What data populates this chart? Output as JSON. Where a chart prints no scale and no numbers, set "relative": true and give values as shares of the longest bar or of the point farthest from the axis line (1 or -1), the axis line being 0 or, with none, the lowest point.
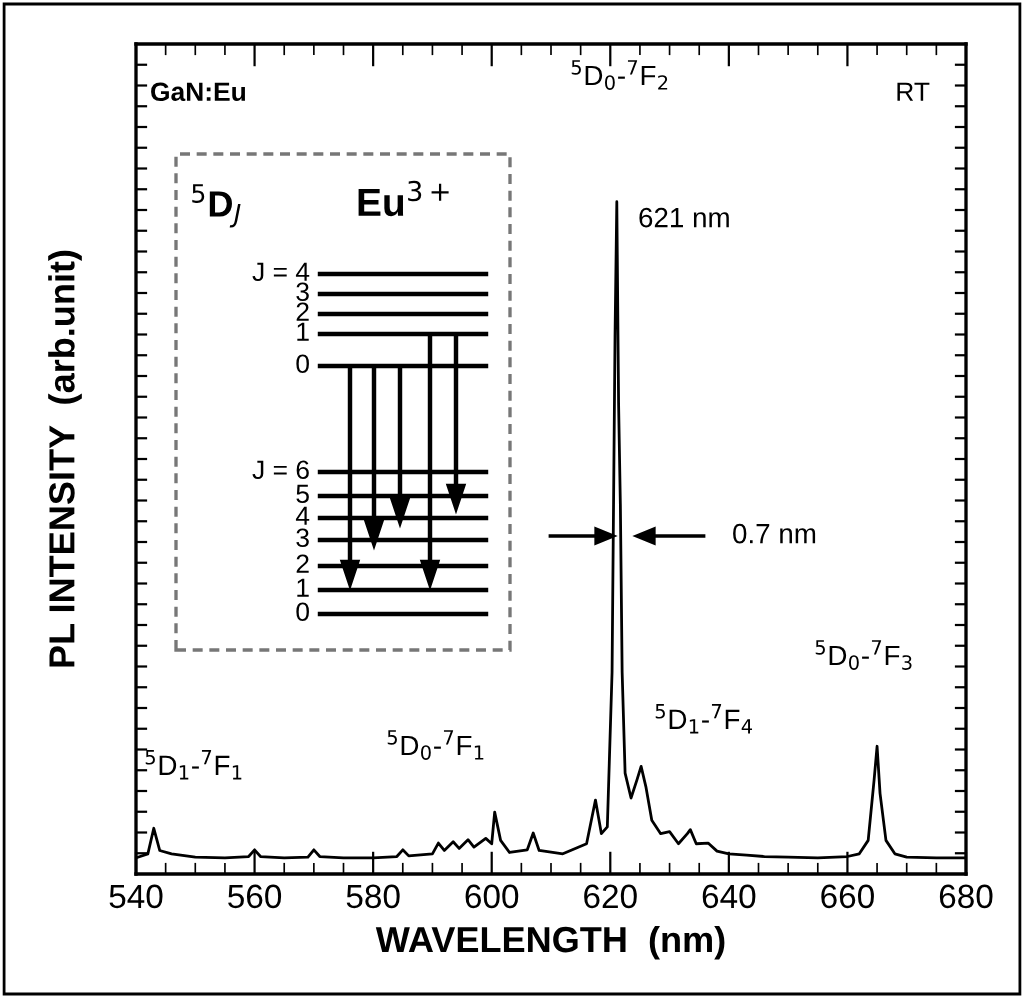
{
  "chart_data": {
    "type": "line",
    "relative": true,
    "xlabel": "WAVELENGTH  (nm)",
    "ylabel": "PL INTENSITY  (arb.unit)",
    "x": [
      540,
      542,
      543,
      544,
      546,
      550,
      555,
      559,
      560,
      561,
      565,
      569,
      570,
      571,
      575,
      580,
      584,
      585,
      586,
      590,
      591,
      592,
      593.5,
      594.5,
      596,
      597,
      599,
      600,
      600.5,
      601.5,
      603,
      606,
      607,
      608,
      612,
      616,
      617.5,
      618.5,
      619.5,
      620.3,
      620.8,
      621.1,
      621.4,
      621.7,
      622,
      622.5,
      623.5,
      624.5,
      625.2,
      626,
      627,
      628.5,
      630,
      631.5,
      633,
      633.5,
      634.5,
      636.5,
      638,
      640,
      643,
      646,
      650,
      655,
      660,
      662,
      663.5,
      664.5,
      665,
      665.5,
      666.5,
      668,
      670,
      675,
      680
    ],
    "values": [
      0.024,
      0.03,
      0.068,
      0.035,
      0.03,
      0.025,
      0.024,
      0.026,
      0.036,
      0.026,
      0.024,
      0.025,
      0.036,
      0.026,
      0.024,
      0.024,
      0.026,
      0.036,
      0.027,
      0.03,
      0.046,
      0.035,
      0.048,
      0.038,
      0.051,
      0.04,
      0.053,
      0.045,
      0.092,
      0.05,
      0.032,
      0.036,
      0.061,
      0.035,
      0.03,
      0.045,
      0.11,
      0.06,
      0.07,
      0.3,
      0.8,
      1.0,
      0.7,
      0.55,
      0.3,
      0.15,
      0.113,
      0.14,
      0.16,
      0.13,
      0.08,
      0.06,
      0.063,
      0.045,
      0.06,
      0.066,
      0.045,
      0.046,
      0.034,
      0.03,
      0.028,
      0.026,
      0.025,
      0.024,
      0.026,
      0.03,
      0.05,
      0.14,
      0.19,
      0.12,
      0.05,
      0.03,
      0.025,
      0.024,
      0.024
    ],
    "color": "#000000",
    "xlim": [
      540,
      680
    ],
    "xticks": [
      540,
      560,
      580,
      600,
      620,
      640,
      660,
      680
    ],
    "grid": false,
    "annotations": [
      "GaN:Eu",
      "RT",
      "$^{5}$D$_{0}$-$^{7}$F$_{2}$",
      "621 nm",
      "0.7 nm",
      "$^{5}$D$_{1}$-$^{7}$F$_{1}$",
      "$^{5}$D$_{0}$-$^{7}$F$_{1}$",
      "$^{5}$D$_{1}$-$^{7}$F$_{4}$",
      "$^{5}$D$_{0}$-$^{7}$F$_{3}$",
      "$^{5}$D$_{J}$",
      "Eu$^{3+}$",
      "J = 4",
      "3",
      "2",
      "1",
      "0",
      "J = 6",
      "5",
      "4",
      "3",
      "2",
      "1",
      "0"
    ]
  }
}
